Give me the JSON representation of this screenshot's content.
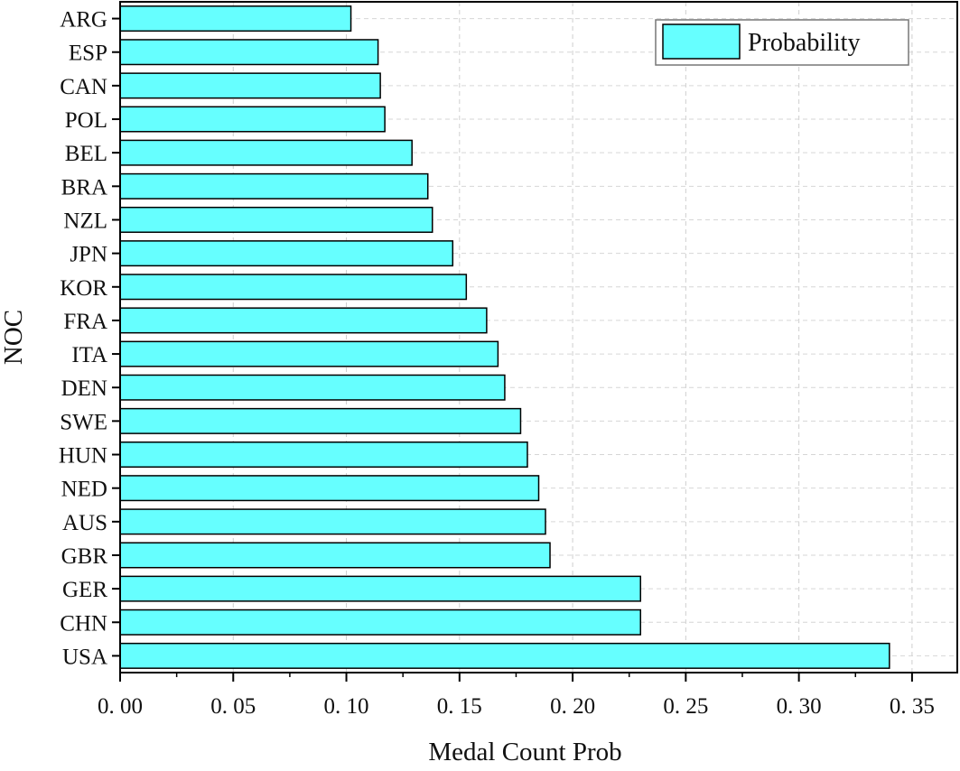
{
  "chart_data": {
    "type": "bar",
    "orientation": "horizontal",
    "categories": [
      "USA",
      "CHN",
      "GER",
      "GBR",
      "AUS",
      "NED",
      "HUN",
      "SWE",
      "DEN",
      "ITA",
      "FRA",
      "KOR",
      "JPN",
      "NZL",
      "BRA",
      "BEL",
      "POL",
      "CAN",
      "ESP",
      "ARG"
    ],
    "series": [
      {
        "name": "Probability",
        "color": "#66ffff",
        "values": [
          0.34,
          0.23,
          0.23,
          0.19,
          0.188,
          0.185,
          0.18,
          0.177,
          0.17,
          0.167,
          0.162,
          0.153,
          0.147,
          0.138,
          0.136,
          0.129,
          0.117,
          0.115,
          0.114,
          0.102
        ]
      }
    ],
    "xlabel": "Medal Count Prob",
    "ylabel": "NOC",
    "xlim": [
      0,
      0.37
    ],
    "xticks": [
      0.0,
      0.05,
      0.1,
      0.15,
      0.2,
      0.25,
      0.3,
      0.35
    ],
    "xtick_labels": [
      "0. 00",
      "0. 05",
      "0. 10",
      "0. 15",
      "0. 20",
      "0. 25",
      "0. 30",
      "0. 35"
    ],
    "grid": true,
    "legend_position": "top-right"
  }
}
